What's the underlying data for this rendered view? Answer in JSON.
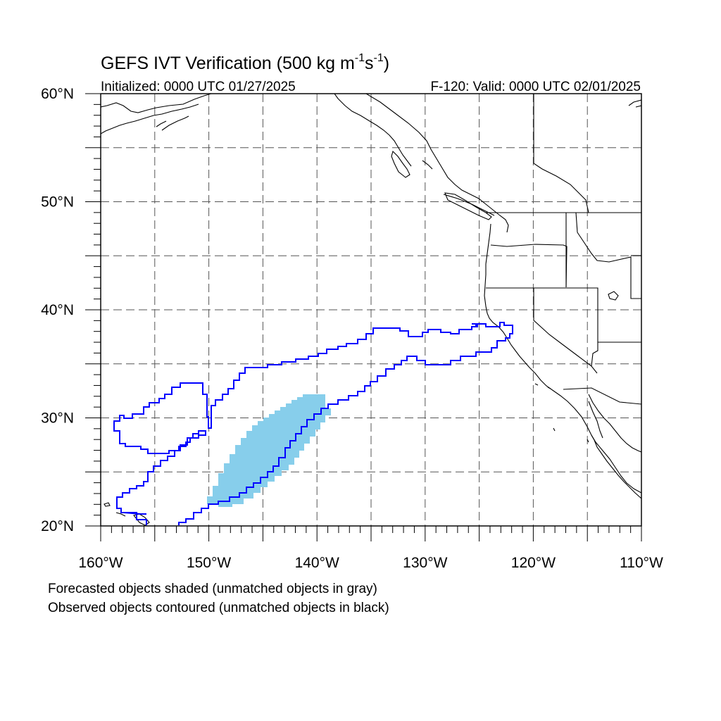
{
  "title": {
    "main": "GEFS IVT Verification (500 kg m",
    "sup1": "-1",
    "mid": "s",
    "sup2": "-1",
    "close": ")"
  },
  "subtitle": {
    "left": "Initialized: 0000 UTC 01/27/2025",
    "right": "F-120: Valid: 0000 UTC 02/01/2025"
  },
  "map": {
    "lon_range": [
      -160,
      -110
    ],
    "lat_range": [
      20,
      60
    ],
    "lon_ticks": [
      {
        "value": -160,
        "label": "160°W"
      },
      {
        "value": -150,
        "label": "150°W"
      },
      {
        "value": -140,
        "label": "140°W"
      },
      {
        "value": -130,
        "label": "130°W"
      },
      {
        "value": -120,
        "label": "120°W"
      },
      {
        "value": -110,
        "label": "110°W"
      }
    ],
    "lat_ticks": [
      {
        "value": 20,
        "label": "20°N"
      },
      {
        "value": 30,
        "label": "30°N"
      },
      {
        "value": 40,
        "label": "40°N"
      },
      {
        "value": 50,
        "label": "50°N"
      },
      {
        "value": 60,
        "label": "60°N"
      }
    ],
    "grid": "dashed, every 5 degrees",
    "forecast_fill_color": "#87ceeb",
    "observed_contour_color": "#0000ff"
  },
  "legend": {
    "line1": "Forecasted objects shaded (unmatched objects in gray)",
    "line2": "Observed objects contoured (unmatched objects in black)"
  }
}
